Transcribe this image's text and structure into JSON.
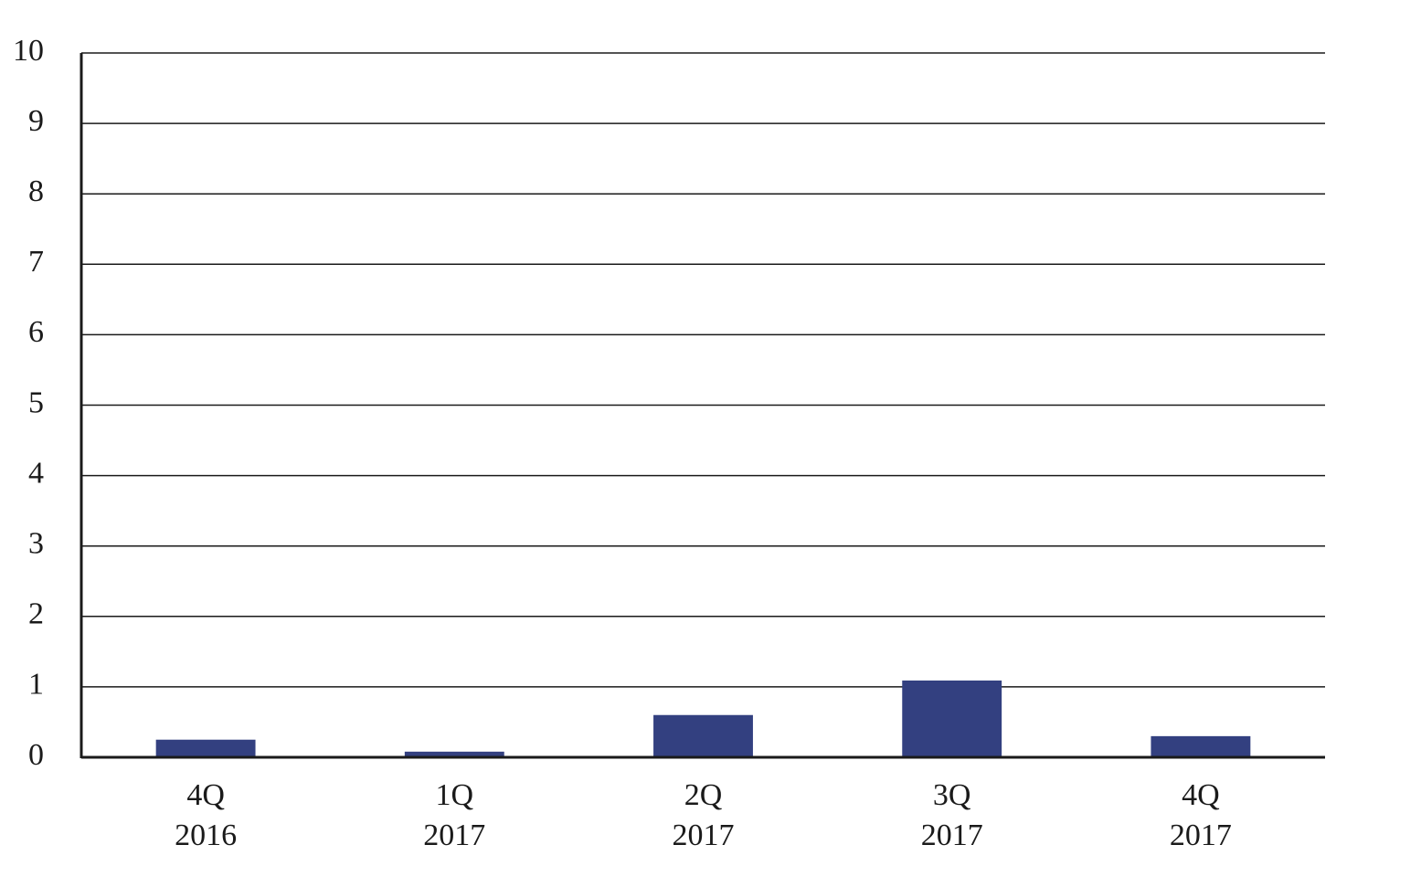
{
  "chart_data": {
    "type": "bar",
    "categories": [
      [
        "4Q",
        "2016"
      ],
      [
        "1Q",
        "2017"
      ],
      [
        "2Q",
        "2017"
      ],
      [
        "3Q",
        "2017"
      ],
      [
        "4Q",
        "2017"
      ]
    ],
    "values": [
      0.25,
      0.08,
      0.6,
      1.09,
      0.3
    ],
    "color": "#334080",
    "ylim": [
      0,
      10
    ],
    "yticks": [
      0,
      1,
      2,
      3,
      4,
      5,
      6,
      7,
      8,
      9,
      10
    ],
    "grid": true
  }
}
